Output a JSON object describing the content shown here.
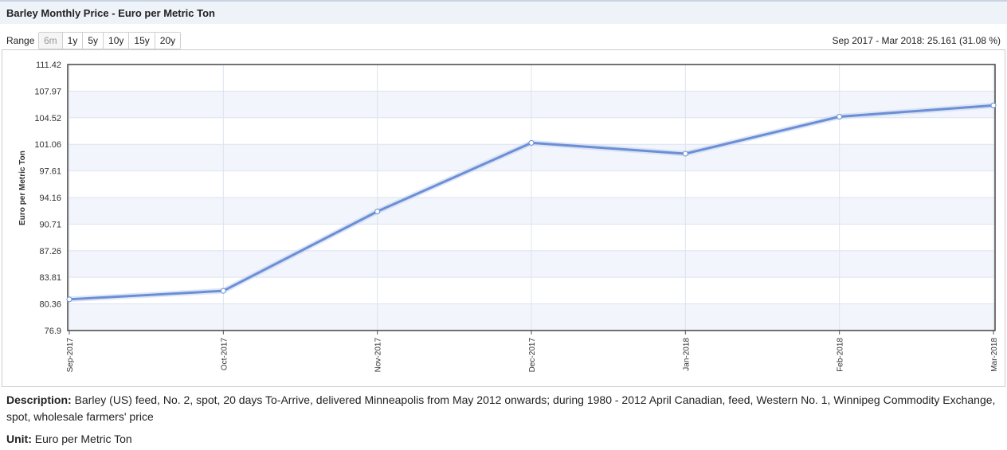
{
  "header": {
    "title": "Barley Monthly Price - Euro per Metric Ton"
  },
  "range": {
    "label": "Range",
    "options": [
      "6m",
      "1y",
      "5y",
      "10y",
      "15y",
      "20y"
    ],
    "selected": "6m"
  },
  "period_info": "Sep 2017 - Mar 2018: 25.161 (31.08 %)",
  "description": {
    "label": "Description:",
    "text": "Barley (US) feed, No. 2, spot, 20 days To-Arrive, delivered Minneapolis from May 2012 onwards; during 1980 - 2012 April Canadian, feed, Western No. 1, Winnipeg Commodity Exchange, spot, wholesale farmers' price"
  },
  "unit": {
    "label": "Unit:",
    "text": "Euro per Metric Ton"
  },
  "colors": {
    "line": "#6b8fd6",
    "band": "#f2f5fb",
    "grid": "#dde3ee"
  },
  "chart_data": {
    "type": "line",
    "title": "",
    "xlabel": "",
    "ylabel": "Euro per Metric Ton",
    "categories": [
      "Sep-2017",
      "Oct-2017",
      "Nov-2017",
      "Dec-2017",
      "Jan-2018",
      "Feb-2018",
      "Mar-2018"
    ],
    "series": [
      {
        "values": [
          80.95,
          82.05,
          92.35,
          101.25,
          99.85,
          104.65,
          106.11
        ]
      }
    ],
    "yticks": [
      "76.9",
      "80.36",
      "83.81",
      "87.26",
      "90.71",
      "94.16",
      "97.61",
      "101.06",
      "104.52",
      "107.97",
      "111.42"
    ],
    "ylim": [
      76.9,
      111.42
    ],
    "grid": true,
    "legend": "none"
  }
}
